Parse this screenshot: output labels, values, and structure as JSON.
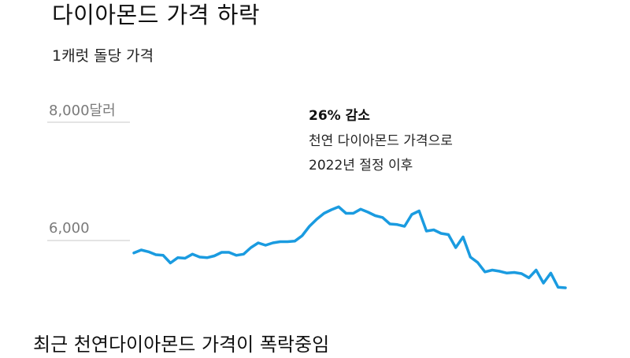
{
  "title": "다이아몬드 가격 하락",
  "subtitle": "1캐럿 돌당 가격",
  "caption": "최근 천연다이아몬드 가격이 폭락중임",
  "colors": {
    "line": "#1a9be0",
    "grid": "#c8c8c8",
    "tick_text": "#7a7a7a"
  },
  "chart_data": {
    "type": "line",
    "title": "다이아몬드 가격 하락",
    "subtitle": "1캐럿 돌당 가격",
    "ylabel": "",
    "xlabel": "",
    "y_ticks": [
      {
        "value": 8000,
        "label": "8,000달러"
      },
      {
        "value": 6000,
        "label": "6,000"
      }
    ],
    "ylim": [
      5000,
      8300
    ],
    "grid": "horizontal",
    "annotation": {
      "head": "26% 감소",
      "line1": "천연 다이아몬드 가격으로",
      "line2": "2022년 절정 이후"
    },
    "series": [
      {
        "values": [
          5790,
          5840,
          5810,
          5760,
          5750,
          5620,
          5710,
          5700,
          5770,
          5720,
          5710,
          5740,
          5800,
          5800,
          5750,
          5770,
          5880,
          5960,
          5920,
          5960,
          5980,
          5980,
          5990,
          6080,
          6240,
          6360,
          6460,
          6520,
          6570,
          6460,
          6460,
          6530,
          6480,
          6420,
          6390,
          6280,
          6270,
          6240,
          6440,
          6500,
          6160,
          6180,
          6120,
          6100,
          5880,
          6060,
          5720,
          5630,
          5470,
          5500,
          5480,
          5450,
          5460,
          5440,
          5370,
          5500,
          5280,
          5450,
          5210,
          5200
        ]
      }
    ]
  }
}
